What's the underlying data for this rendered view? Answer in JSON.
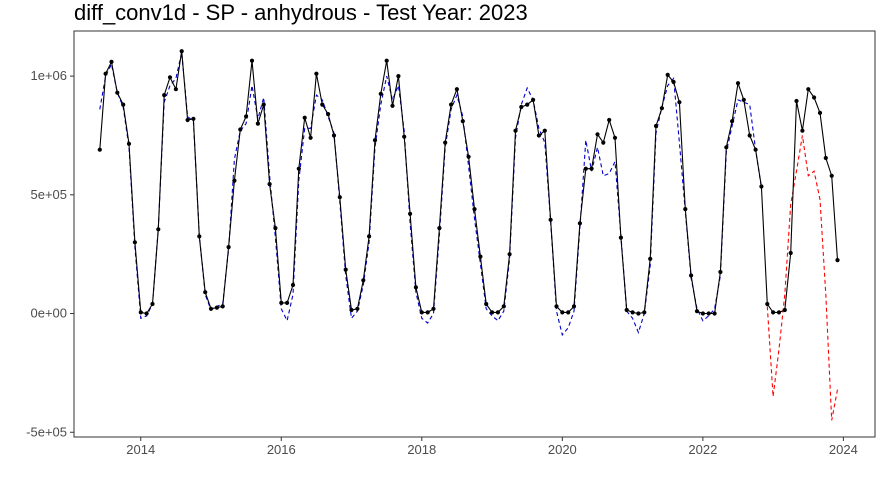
{
  "chart_data": {
    "type": "line",
    "title": "diff_conv1d - SP - anhydrous - Test Year: 2023",
    "xlabel": "",
    "ylabel": "",
    "xlim": [
      2013.05,
      2024.45
    ],
    "ylim": [
      -520000,
      1190000
    ],
    "x_ticks": [
      2014,
      2016,
      2018,
      2020,
      2022,
      2024
    ],
    "x_tick_labels": [
      "2014",
      "2016",
      "2018",
      "2020",
      "2022",
      "2024"
    ],
    "y_ticks": [
      -500000,
      0,
      500000,
      1000000
    ],
    "y_tick_labels": [
      "-5e+05",
      "0e+00",
      "5e+05",
      "1e+06"
    ],
    "grid": false,
    "legend": "none",
    "colors": {
      "actual": "#000000",
      "fitted": "#0000cd",
      "forecast": "#ff0000"
    },
    "x_start_year": 2013.4167,
    "x_step": 0.0833333,
    "series": [
      {
        "role": "actual",
        "style": "solid-with-points",
        "values": [
          690000,
          1010000,
          1060000,
          930000,
          880000,
          715000,
          300000,
          5000,
          0,
          40000,
          355000,
          920000,
          995000,
          945000,
          1105000,
          815000,
          820000,
          325000,
          90000,
          20000,
          25000,
          30000,
          280000,
          560000,
          775000,
          830000,
          1065000,
          800000,
          880000,
          545000,
          360000,
          45000,
          45000,
          120000,
          610000,
          825000,
          740000,
          1010000,
          880000,
          840000,
          750000,
          490000,
          185000,
          15000,
          20000,
          140000,
          325000,
          730000,
          925000,
          1065000,
          875000,
          1000000,
          745000,
          420000,
          110000,
          5000,
          5000,
          20000,
          360000,
          720000,
          880000,
          945000,
          810000,
          660000,
          440000,
          240000,
          40000,
          5000,
          5000,
          30000,
          250000,
          770000,
          870000,
          880000,
          900000,
          750000,
          770000,
          395000,
          30000,
          5000,
          5000,
          30000,
          380000,
          610000,
          610000,
          755000,
          720000,
          815000,
          740000,
          320000,
          15000,
          5000,
          0,
          5000,
          230000,
          790000,
          865000,
          1005000,
          975000,
          890000,
          440000,
          160000,
          10000,
          0,
          0,
          0,
          175000,
          700000,
          810000,
          970000,
          900000,
          750000,
          690000,
          535000,
          40000,
          5000,
          5000,
          15000,
          255000,
          895000,
          770000,
          945000,
          910000,
          845000,
          655000,
          580000,
          225000
        ]
      },
      {
        "role": "fitted",
        "style": "dashed",
        "values": [
          860000,
          1000000,
          1050000,
          930000,
          870000,
          700000,
          280000,
          -20000,
          -10000,
          40000,
          360000,
          890000,
          960000,
          990000,
          1100000,
          830000,
          810000,
          330000,
          80000,
          15000,
          30000,
          40000,
          270000,
          650000,
          770000,
          800000,
          960000,
          820000,
          910000,
          580000,
          320000,
          20000,
          -30000,
          80000,
          560000,
          780000,
          780000,
          920000,
          900000,
          830000,
          760000,
          470000,
          160000,
          -20000,
          10000,
          120000,
          300000,
          700000,
          880000,
          1000000,
          900000,
          960000,
          770000,
          380000,
          90000,
          -20000,
          -40000,
          0,
          330000,
          700000,
          860000,
          920000,
          830000,
          620000,
          400000,
          210000,
          20000,
          -10000,
          -30000,
          10000,
          230000,
          740000,
          880000,
          950000,
          900000,
          780000,
          720000,
          390000,
          10000,
          -90000,
          -60000,
          10000,
          360000,
          730000,
          600000,
          700000,
          580000,
          590000,
          640000,
          330000,
          10000,
          -20000,
          -80000,
          0,
          200000,
          760000,
          870000,
          960000,
          990000,
          720000,
          430000,
          150000,
          20000,
          -30000,
          -10000,
          20000,
          160000,
          680000,
          790000,
          900000,
          890000,
          880000,
          690000,
          530000
        ]
      },
      {
        "role": "forecast",
        "style": "dashed",
        "x_start_year": 2022.9167,
        "values": [
          30000,
          -350000,
          -150000,
          80000,
          460000,
          600000,
          750000,
          580000,
          600000,
          480000,
          80000,
          -450000,
          -320000
        ]
      }
    ]
  }
}
